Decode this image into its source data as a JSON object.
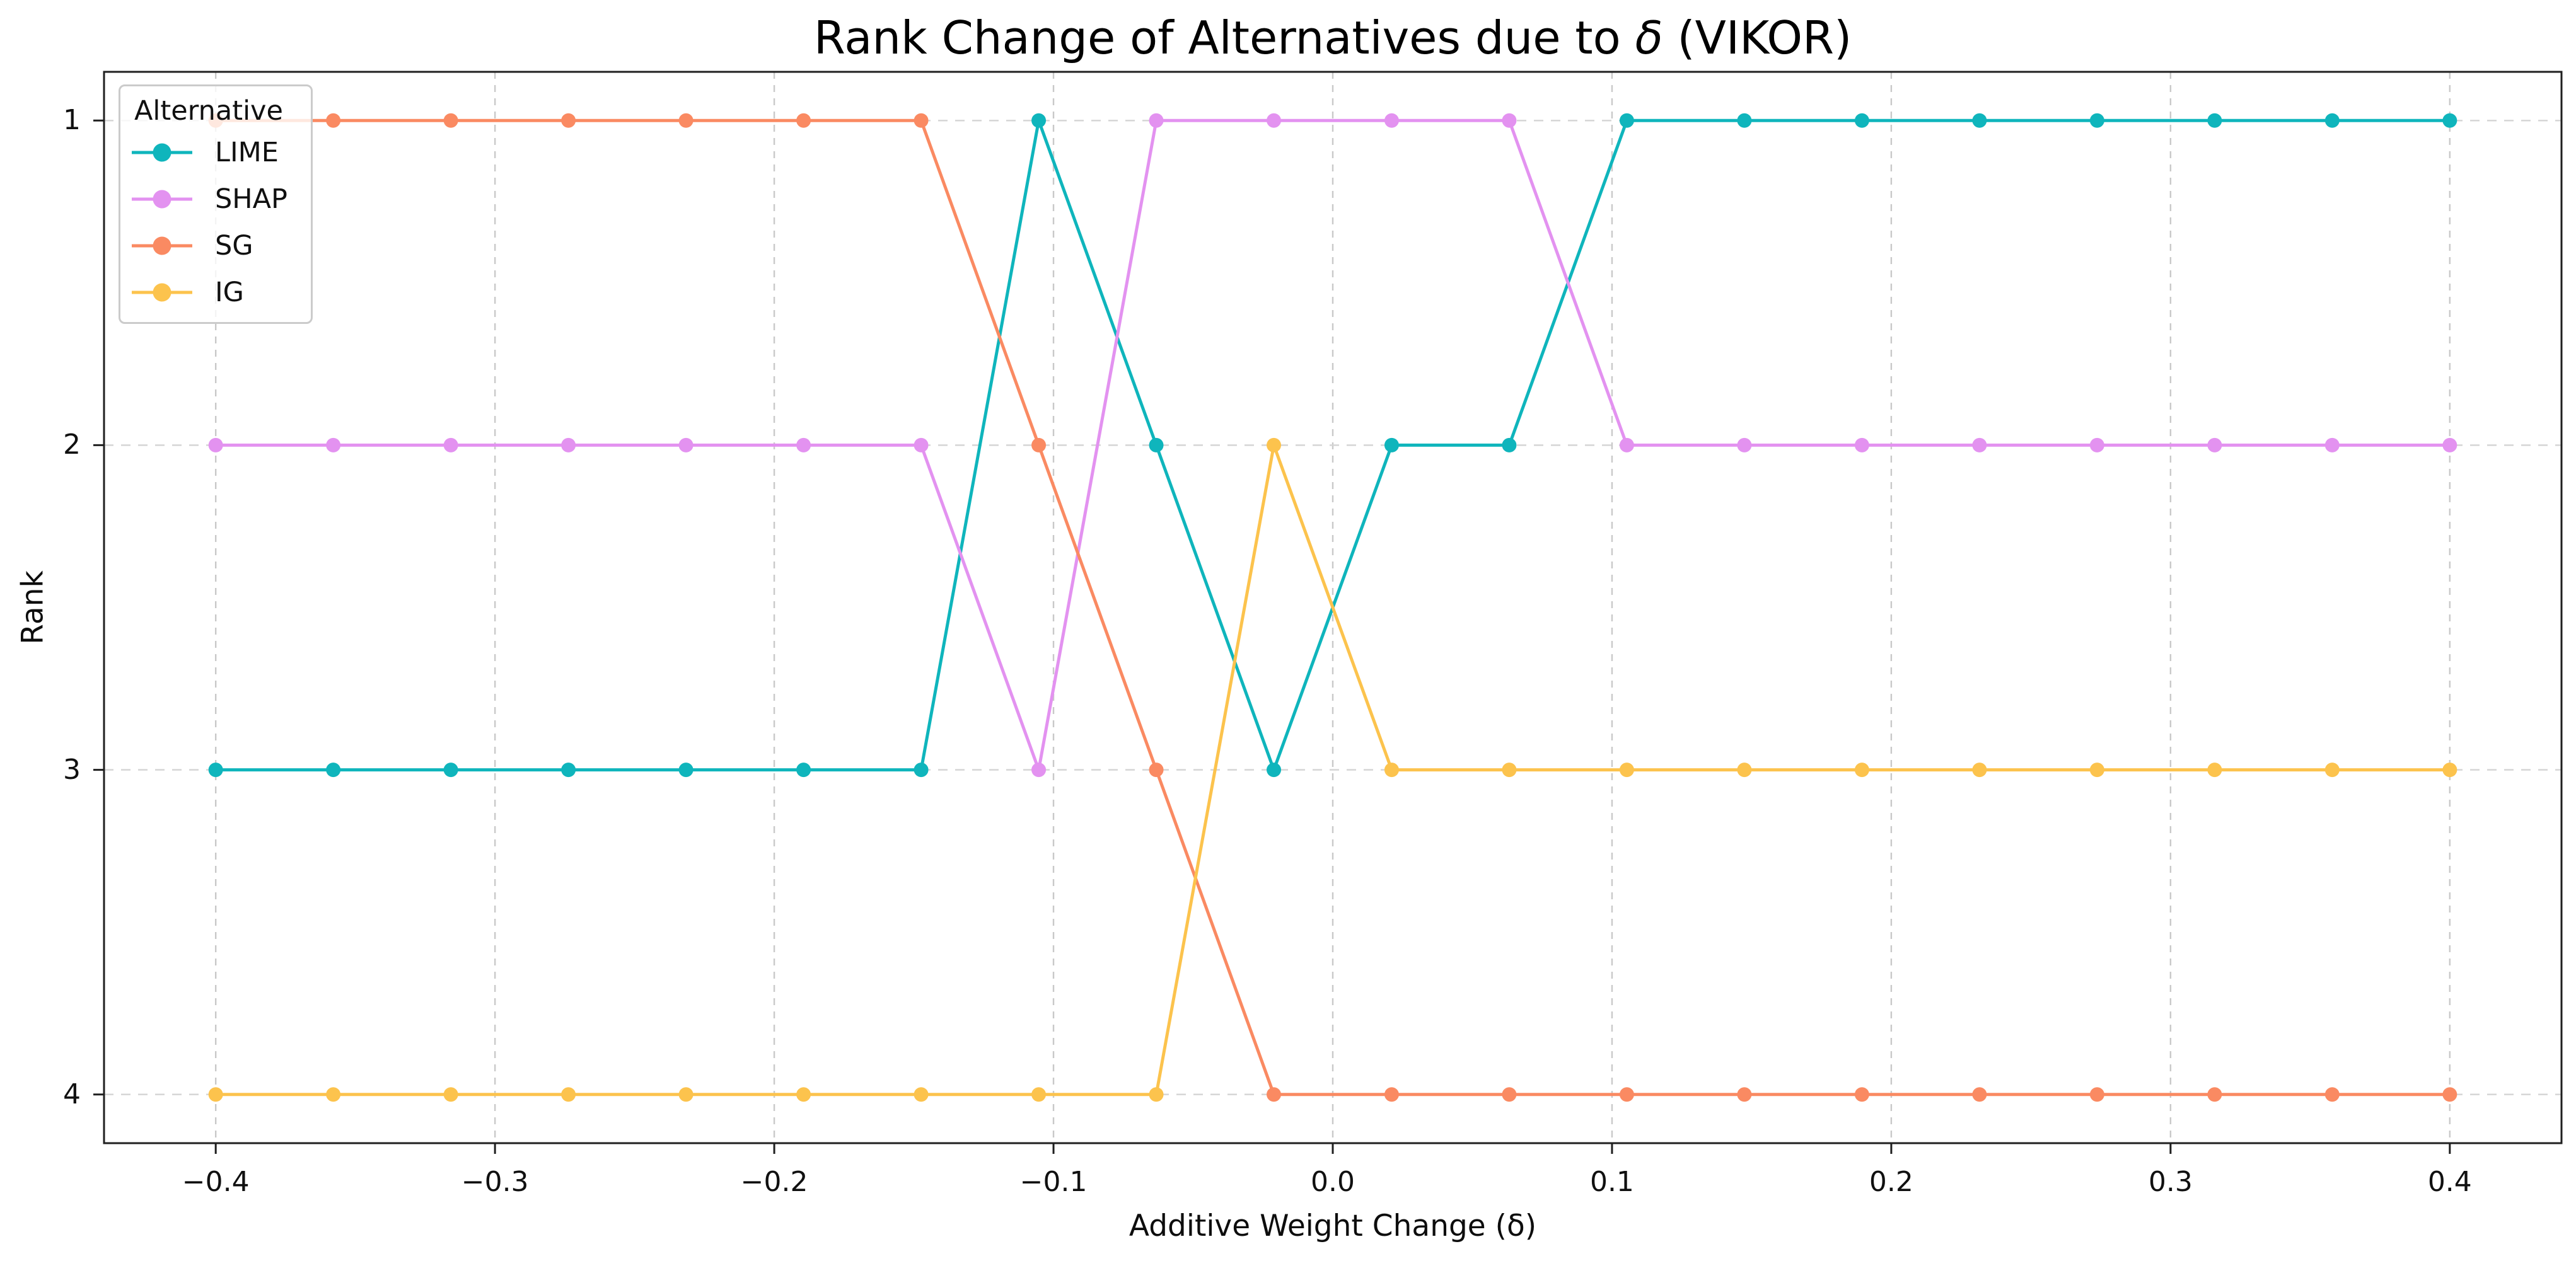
{
  "figure": {
    "title_prefix": "Rank Change of Alternatives due to ",
    "title_delta": "δ",
    "title_suffix": " (VIKOR)",
    "xlabel": "Additive Weight Change (δ)",
    "ylabel": "Rank"
  },
  "chart_data": {
    "type": "line",
    "title": "Rank Change of Alternatives due to δ (VIKOR)",
    "xlabel": "Additive Weight Change (δ)",
    "ylabel": "Rank",
    "legend_title": "Alternative",
    "legend_loc": "upper left",
    "x": [
      -0.4,
      -0.3579,
      -0.3158,
      -0.2737,
      -0.2316,
      -0.1895,
      -0.1474,
      -0.1053,
      -0.0632,
      -0.0211,
      0.0211,
      0.0632,
      0.1053,
      0.1474,
      0.1895,
      0.2316,
      0.2737,
      0.3158,
      0.3579,
      0.4
    ],
    "series": [
      {
        "name": "LIME",
        "color": "#0fb5bc",
        "ranks": [
          3,
          3,
          3,
          3,
          3,
          3,
          3,
          1,
          2,
          3,
          2,
          2,
          1,
          1,
          1,
          1,
          1,
          1,
          1,
          1
        ]
      },
      {
        "name": "SHAP",
        "color": "#e392f0",
        "ranks": [
          2,
          2,
          2,
          2,
          2,
          2,
          2,
          3,
          1,
          1,
          1,
          1,
          2,
          2,
          2,
          2,
          2,
          2,
          2,
          2
        ]
      },
      {
        "name": "SG",
        "color": "#fa8a62",
        "ranks": [
          1,
          1,
          1,
          1,
          1,
          1,
          1,
          2,
          3,
          4,
          4,
          4,
          4,
          4,
          4,
          4,
          4,
          4,
          4,
          4
        ]
      },
      {
        "name": "IG",
        "color": "#fcc34d",
        "ranks": [
          4,
          4,
          4,
          4,
          4,
          4,
          4,
          4,
          4,
          2,
          3,
          3,
          3,
          3,
          3,
          3,
          3,
          3,
          3,
          3
        ]
      }
    ],
    "xticks": [
      -0.4,
      -0.3,
      -0.2,
      -0.1,
      0.0,
      0.1,
      0.2,
      0.3,
      0.4
    ],
    "xtick_labels": [
      "−0.4",
      "−0.3",
      "−0.2",
      "−0.1",
      "0.0",
      "0.1",
      "0.2",
      "0.3",
      "0.4"
    ],
    "yticks": [
      1,
      2,
      3,
      4
    ],
    "ytick_labels": [
      "1",
      "2",
      "3",
      "4"
    ],
    "xlim": [
      -0.44,
      0.44
    ],
    "ylim": [
      0.85,
      4.15
    ],
    "y_axis_inverted": true,
    "grid": {
      "style": "dashed",
      "color_vertical": "#c9c9c9",
      "color_horizontal": "#d4d4d4"
    },
    "marker": "circle",
    "background": "#ffffff"
  }
}
